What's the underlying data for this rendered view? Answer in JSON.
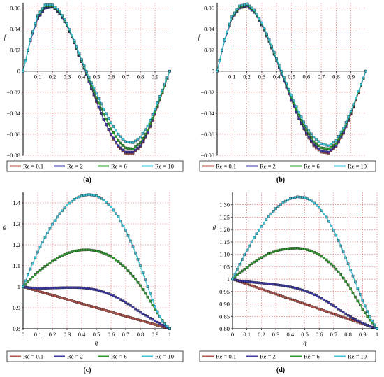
{
  "colors": {
    "re01": "#b5524a",
    "re2": "#3d3aa8",
    "re6": "#2e9b2e",
    "re10": "#3cc4d8",
    "grid": "#e05a5a",
    "axis": "#000000"
  },
  "chart_data": [
    {
      "type": "line",
      "panel_label": "(a)",
      "ylabel": "f",
      "xlabel": "",
      "xlim": [
        0,
        1
      ],
      "ylim": [
        -0.08,
        0.065
      ],
      "x_ticks": [
        "0.1",
        "0.2",
        "0.3",
        "0.4",
        "0.5",
        "0.6",
        "0.7",
        "0.8",
        "0.9"
      ],
      "y_ticks": [
        "0.06",
        "0.04",
        "0.02",
        "0",
        "−0.02",
        "−0.04",
        "−0.06",
        "−0.08"
      ],
      "x_axis_at_zero": true,
      "grid": true,
      "legend_position": "bottom",
      "x": [
        0,
        0.05,
        0.1,
        0.15,
        0.2,
        0.25,
        0.3,
        0.35,
        0.4,
        0.45,
        0.5,
        0.55,
        0.6,
        0.65,
        0.7,
        0.75,
        0.8,
        0.85,
        0.9,
        0.95,
        1
      ],
      "series": [
        {
          "name": "Re = 0.1",
          "color_key": "re01",
          "values": [
            0,
            0.029,
            0.05,
            0.06,
            0.061,
            0.055,
            0.043,
            0.027,
            0.009,
            -0.01,
            -0.029,
            -0.046,
            -0.061,
            -0.072,
            -0.078,
            -0.078,
            -0.072,
            -0.059,
            -0.041,
            -0.021,
            0
          ]
        },
        {
          "name": "Re = 2",
          "color_key": "re2",
          "values": [
            0,
            0.029,
            0.05,
            0.06,
            0.061,
            0.055,
            0.043,
            0.027,
            0.009,
            -0.01,
            -0.028,
            -0.046,
            -0.06,
            -0.071,
            -0.077,
            -0.077,
            -0.071,
            -0.058,
            -0.04,
            -0.02,
            0
          ]
        },
        {
          "name": "Re = 6",
          "color_key": "re6",
          "values": [
            0,
            0.03,
            0.052,
            0.062,
            0.062,
            0.056,
            0.044,
            0.028,
            0.01,
            -0.008,
            -0.025,
            -0.041,
            -0.055,
            -0.066,
            -0.073,
            -0.074,
            -0.068,
            -0.056,
            -0.039,
            -0.02,
            0
          ]
        },
        {
          "name": "Re = 10",
          "color_key": "re10",
          "values": [
            0,
            0.03,
            0.053,
            0.063,
            0.063,
            0.057,
            0.045,
            0.029,
            0.011,
            -0.006,
            -0.021,
            -0.036,
            -0.049,
            -0.06,
            -0.067,
            -0.068,
            -0.063,
            -0.052,
            -0.036,
            -0.018,
            0
          ]
        }
      ]
    },
    {
      "type": "line",
      "panel_label": "(b)",
      "ylabel": "f",
      "xlabel": "",
      "xlim": [
        0,
        1
      ],
      "ylim": [
        -0.08,
        0.065
      ],
      "x_ticks": [
        "0.1",
        "0.2",
        "0.3",
        "0.4",
        "0.5",
        "0.6",
        "0.7",
        "0.8",
        "0.9"
      ],
      "y_ticks": [
        "0.06",
        "0.04",
        "0.02",
        "0",
        "−0.02",
        "−0.04",
        "−0.06",
        "−0.08"
      ],
      "x_axis_at_zero": true,
      "grid": true,
      "legend_position": "bottom",
      "x": [
        0,
        0.05,
        0.1,
        0.15,
        0.2,
        0.25,
        0.3,
        0.35,
        0.4,
        0.45,
        0.5,
        0.55,
        0.6,
        0.65,
        0.7,
        0.75,
        0.8,
        0.85,
        0.9,
        0.95,
        1
      ],
      "series": [
        {
          "name": "Re = 0.1",
          "color_key": "re01",
          "values": [
            0,
            0.029,
            0.05,
            0.06,
            0.062,
            0.056,
            0.044,
            0.028,
            0.01,
            -0.009,
            -0.028,
            -0.045,
            -0.06,
            -0.071,
            -0.077,
            -0.078,
            -0.072,
            -0.059,
            -0.041,
            -0.021,
            0
          ]
        },
        {
          "name": "Re = 2",
          "color_key": "re2",
          "values": [
            0,
            0.029,
            0.05,
            0.06,
            0.062,
            0.056,
            0.044,
            0.028,
            0.01,
            -0.009,
            -0.027,
            -0.045,
            -0.059,
            -0.07,
            -0.076,
            -0.077,
            -0.071,
            -0.058,
            -0.04,
            -0.02,
            0
          ]
        },
        {
          "name": "Re = 6",
          "color_key": "re6",
          "values": [
            0,
            0.03,
            0.051,
            0.061,
            0.063,
            0.057,
            0.045,
            0.029,
            0.011,
            -0.007,
            -0.025,
            -0.042,
            -0.056,
            -0.067,
            -0.073,
            -0.074,
            -0.069,
            -0.056,
            -0.039,
            -0.02,
            0
          ]
        },
        {
          "name": "Re = 10",
          "color_key": "re10",
          "values": [
            0,
            0.03,
            0.052,
            0.062,
            0.064,
            0.058,
            0.046,
            0.03,
            0.012,
            -0.006,
            -0.023,
            -0.039,
            -0.053,
            -0.063,
            -0.069,
            -0.071,
            -0.066,
            -0.054,
            -0.038,
            -0.019,
            0
          ]
        }
      ]
    },
    {
      "type": "line",
      "panel_label": "(c)",
      "ylabel": "g",
      "xlabel": "η",
      "xlim": [
        0,
        1
      ],
      "ylim": [
        0.8,
        1.45
      ],
      "x_ticks": [
        "0",
        "0.1",
        "0.2",
        "0.3",
        "0.4",
        "0.5",
        "0.6",
        "0.7",
        "0.8",
        "0.9",
        "1"
      ],
      "y_ticks": [
        "1.4",
        "1.3",
        "1.2",
        "1.1",
        "1",
        "0.9",
        "0.8"
      ],
      "x_axis_at_zero": false,
      "grid": true,
      "legend_position": "bottom",
      "x": [
        0,
        0.05,
        0.1,
        0.15,
        0.2,
        0.25,
        0.3,
        0.35,
        0.4,
        0.45,
        0.5,
        0.55,
        0.6,
        0.65,
        0.7,
        0.75,
        0.8,
        0.85,
        0.9,
        0.95,
        1
      ],
      "series": [
        {
          "name": "Re = 0.1",
          "color_key": "re01",
          "values": [
            1.0,
            0.99,
            0.98,
            0.97,
            0.96,
            0.95,
            0.94,
            0.93,
            0.92,
            0.91,
            0.9,
            0.89,
            0.88,
            0.87,
            0.86,
            0.85,
            0.84,
            0.83,
            0.82,
            0.81,
            0.8
          ]
        },
        {
          "name": "Re = 2",
          "color_key": "re2",
          "values": [
            1.0,
            0.995,
            0.993,
            0.993,
            0.994,
            0.995,
            0.996,
            0.996,
            0.995,
            0.991,
            0.985,
            0.975,
            0.962,
            0.946,
            0.926,
            0.903,
            0.878,
            0.857,
            0.838,
            0.818,
            0.8
          ]
        },
        {
          "name": "Re = 6",
          "color_key": "re6",
          "values": [
            1.0,
            1.035,
            1.068,
            1.097,
            1.122,
            1.143,
            1.159,
            1.17,
            1.175,
            1.176,
            1.171,
            1.16,
            1.144,
            1.12,
            1.089,
            1.051,
            1.005,
            0.951,
            0.893,
            0.84,
            0.8
          ]
        },
        {
          "name": "Re = 10",
          "color_key": "re10",
          "values": [
            1.0,
            1.085,
            1.165,
            1.237,
            1.298,
            1.349,
            1.389,
            1.417,
            1.434,
            1.44,
            1.434,
            1.414,
            1.381,
            1.333,
            1.27,
            1.192,
            1.1,
            1.0,
            0.905,
            0.835,
            0.8
          ]
        }
      ]
    },
    {
      "type": "line",
      "panel_label": "(d)",
      "ylabel": "g",
      "xlabel": "η",
      "xlim": [
        0,
        1
      ],
      "ylim": [
        0.8,
        1.35
      ],
      "x_ticks": [
        "0",
        "0.1",
        "0.2",
        "0.3",
        "0.4",
        "0.5",
        "0.6",
        "0.7",
        "0.8",
        "0.9",
        "1"
      ],
      "y_ticks": [
        "1.30",
        "1.25",
        "1.20",
        "1.15",
        "1.10",
        "1.05",
        "1",
        "0.95",
        "0.90",
        "0.85",
        "0.80"
      ],
      "x_axis_at_zero": false,
      "grid": true,
      "legend_position": "bottom",
      "x": [
        0,
        0.05,
        0.1,
        0.15,
        0.2,
        0.25,
        0.3,
        0.35,
        0.4,
        0.45,
        0.5,
        0.55,
        0.6,
        0.65,
        0.7,
        0.75,
        0.8,
        0.85,
        0.9,
        0.95,
        1
      ],
      "series": [
        {
          "name": "Re = 0.1",
          "color_key": "re01",
          "values": [
            1.0,
            0.99,
            0.98,
            0.97,
            0.96,
            0.95,
            0.94,
            0.93,
            0.92,
            0.91,
            0.9,
            0.89,
            0.88,
            0.87,
            0.86,
            0.85,
            0.84,
            0.83,
            0.82,
            0.81,
            0.8
          ]
        },
        {
          "name": "Re = 2",
          "color_key": "re2",
          "values": [
            1.0,
            0.993,
            0.99,
            0.987,
            0.984,
            0.981,
            0.978,
            0.974,
            0.969,
            0.962,
            0.953,
            0.942,
            0.928,
            0.911,
            0.893,
            0.873,
            0.854,
            0.837,
            0.823,
            0.81,
            0.8
          ]
        },
        {
          "name": "Re = 6",
          "color_key": "re6",
          "values": [
            1.0,
            1.025,
            1.048,
            1.069,
            1.087,
            1.102,
            1.113,
            1.12,
            1.124,
            1.125,
            1.121,
            1.112,
            1.099,
            1.078,
            1.052,
            1.018,
            0.977,
            0.928,
            0.879,
            0.835,
            0.8
          ]
        },
        {
          "name": "Re = 10",
          "color_key": "re10",
          "values": [
            1.0,
            1.06,
            1.117,
            1.168,
            1.213,
            1.253,
            1.285,
            1.309,
            1.325,
            1.332,
            1.329,
            1.315,
            1.289,
            1.25,
            1.198,
            1.134,
            1.062,
            0.988,
            0.914,
            0.848,
            0.8
          ]
        }
      ]
    }
  ]
}
